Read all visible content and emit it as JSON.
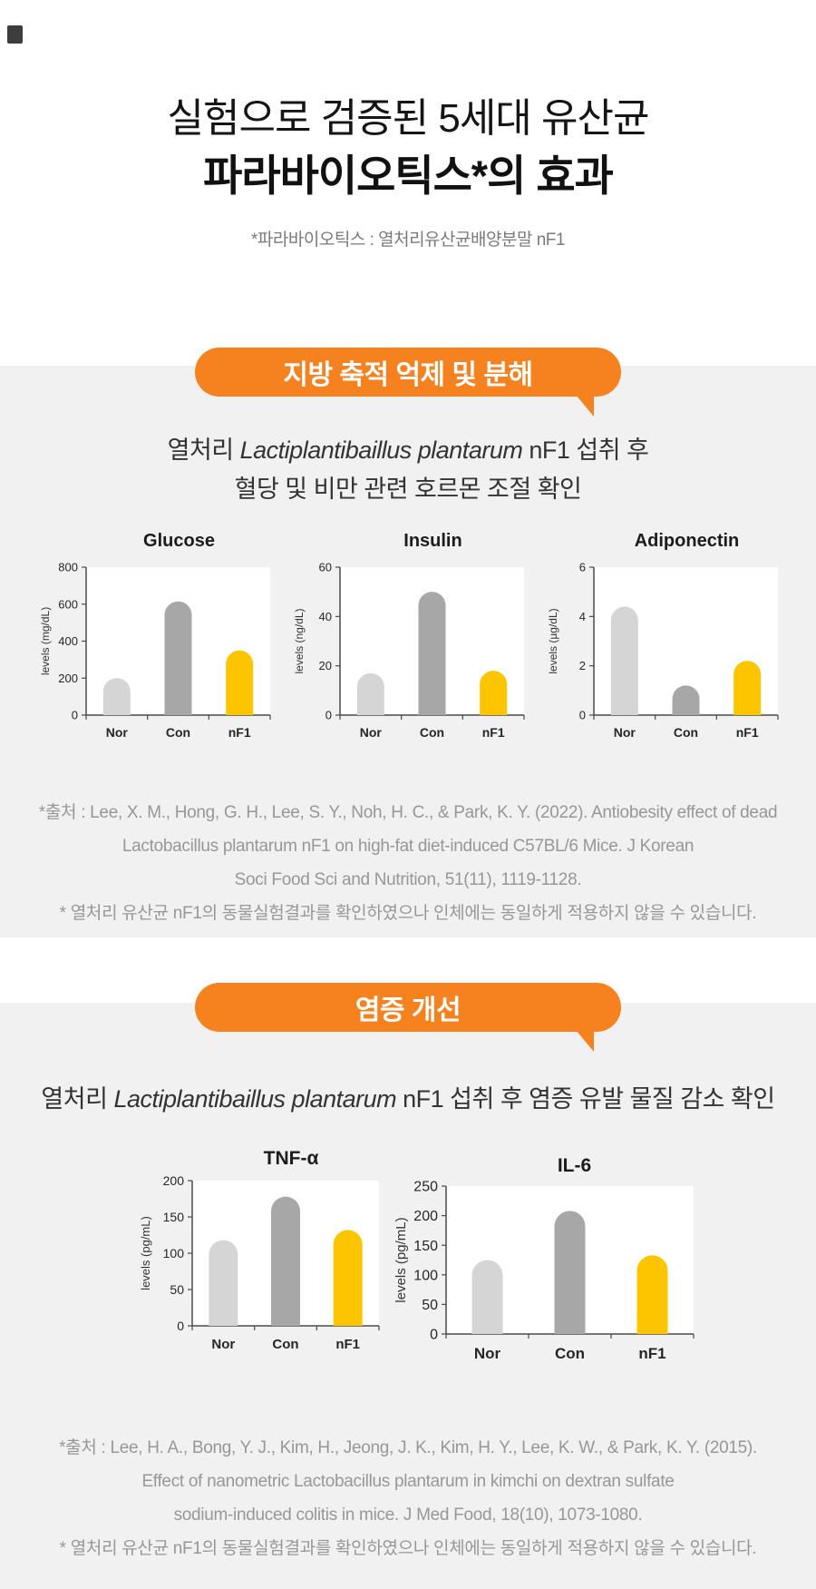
{
  "page": {
    "title_line1": "실험으로 검증된 5세대 유산균",
    "title_line2": "파라바이오틱스*의 효과",
    "title_note": "*파라바이오틱스 : 열처리유산균배양분말 nF1"
  },
  "colors": {
    "accent_orange": "#f5821f",
    "bar_nor": "#d5d5d5",
    "bar_con": "#a7a7a7",
    "bar_nf1": "#fdc400",
    "section_background": "#f1f1f2"
  },
  "section1": {
    "badge": "지방 축적 억제 및 분해",
    "subtitle_prefix": "열처리 ",
    "subtitle_italic": "Lactiplantibaillus plantarum",
    "subtitle_suffix": " nF1 섭취 후",
    "subtitle_line2": "혈당 및 비만 관련 호르몬 조절 확인",
    "citation": [
      "*출처 : Lee, X. M., Hong, G. H., Lee, S. Y., Noh, H. C., & Park, K. Y. (2022). Antiobesity effect of dead",
      "Lactobacillus plantarum nF1 on high-fat diet-induced C57BL/6 Mice. J Korean",
      "Soci Food Sci and Nutrition, 51(11), 1119-1128.",
      "* 열처리 유산균 nF1의 동물실험결과를 확인하였으나 인체에는 동일하게 적용하지 않을 수 있습니다."
    ]
  },
  "section2": {
    "badge": "염증 개선",
    "subtitle_prefix": "열처리 ",
    "subtitle_italic": "Lactiplantibaillus plantarum",
    "subtitle_suffix": " nF1 섭취 후 염증 유발 물질 감소 확인",
    "citation": [
      "*출처 : Lee, H. A., Bong, Y. J., Kim, H., Jeong, J. K., Kim, H. Y., Lee, K. W., & Park, K. Y. (2015).",
      "Effect of nanometric Lactobacillus plantarum in kimchi on dextran sulfate",
      "sodium-induced colitis in mice. J Med Food, 18(10), 1073-1080.",
      "* 열처리 유산균 nF1의 동물실험결과를 확인하였으나 인체에는 동일하게 적용하지 않을 수 있습니다."
    ]
  },
  "chart_data": [
    {
      "type": "bar",
      "title": "Glucose",
      "ylabel": "levels (mg/dL)",
      "categories": [
        "Nor",
        "Con",
        "nF1"
      ],
      "values": [
        200,
        615,
        350
      ],
      "ylim": [
        0,
        800
      ],
      "yticks": [
        0,
        200,
        400,
        600,
        800
      ],
      "colors": [
        "#d5d5d5",
        "#a7a7a7",
        "#fdc400"
      ],
      "legend": "none",
      "grid": false
    },
    {
      "type": "bar",
      "title": "Insulin",
      "ylabel": "levels (ng/dL)",
      "categories": [
        "Nor",
        "Con",
        "nF1"
      ],
      "values": [
        17,
        50,
        18
      ],
      "ylim": [
        0,
        60
      ],
      "yticks": [
        0,
        20,
        40,
        60
      ],
      "colors": [
        "#d5d5d5",
        "#a7a7a7",
        "#fdc400"
      ],
      "legend": "none",
      "grid": false
    },
    {
      "type": "bar",
      "title": "Adiponectin",
      "ylabel": "levels (µg/dL)",
      "categories": [
        "Nor",
        "Con",
        "nF1"
      ],
      "values": [
        4.4,
        1.2,
        2.2
      ],
      "ylim": [
        0,
        6
      ],
      "yticks": [
        0,
        2,
        4,
        6
      ],
      "colors": [
        "#d5d5d5",
        "#a7a7a7",
        "#fdc400"
      ],
      "legend": "none",
      "grid": false
    },
    {
      "type": "bar",
      "title": "TNF-α",
      "ylabel": "levels (pg/mL)",
      "categories": [
        "Nor",
        "Con",
        "nF1"
      ],
      "values": [
        118,
        178,
        132
      ],
      "ylim": [
        0,
        200
      ],
      "yticks": [
        0,
        50,
        100,
        150,
        200
      ],
      "colors": [
        "#d5d5d5",
        "#a7a7a7",
        "#fdc400"
      ],
      "legend": "none",
      "grid": false
    },
    {
      "type": "bar",
      "title": "IL-6",
      "ylabel": "levels (pg/mL)",
      "categories": [
        "Nor",
        "Con",
        "nF1"
      ],
      "values": [
        125,
        208,
        133
      ],
      "ylim": [
        0,
        250
      ],
      "yticks": [
        0,
        50,
        100,
        150,
        200,
        250
      ],
      "colors": [
        "#d5d5d5",
        "#a7a7a7",
        "#fdc400"
      ],
      "legend": "none",
      "grid": false
    }
  ]
}
